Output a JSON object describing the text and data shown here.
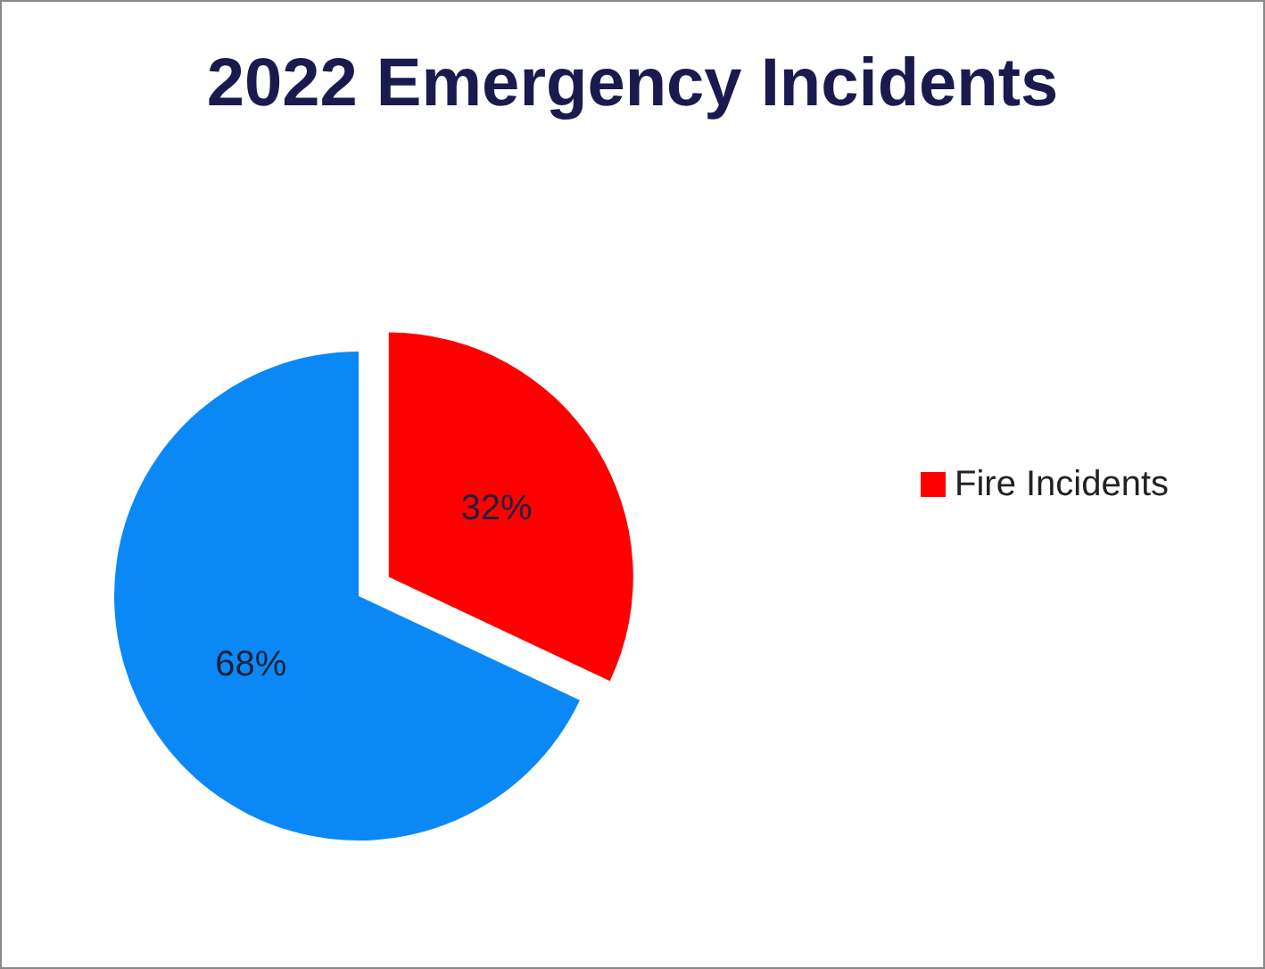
{
  "chart_data": {
    "type": "pie",
    "title": "2022 Emergency Incidents",
    "categories": [
      "Fire Incidents",
      null
    ],
    "values": [
      32,
      68
    ],
    "value_labels": [
      "32%",
      "68%"
    ],
    "colors": [
      "#ff0000",
      "#0a89f6"
    ],
    "legend": "right"
  }
}
